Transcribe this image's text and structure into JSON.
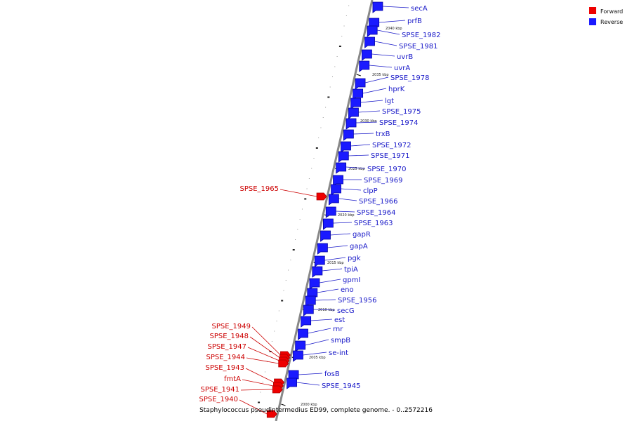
{
  "colors": {
    "forward": "#ee0000",
    "reverse": "#1a1aff",
    "forward_dark": "#a80000",
    "reverse_dark": "#0000a0",
    "forward_label": "#cc0000",
    "reverse_label": "#1818c8",
    "axis": "#888888"
  },
  "legend": {
    "forward": "Forward",
    "reverse": "Reverse"
  },
  "caption": "Staphylococcus pseudintermedius ED99, complete genome. - 0..2572216",
  "ticks": [
    "2040 kbp",
    "2035 kbp",
    "2030 kbp",
    "2025 kbp",
    "2020 kbp",
    "2015 kbp",
    "2010 kbp",
    "2005 kbp",
    "2000 kbp"
  ],
  "reverse_genes": [
    "secA",
    "prfB",
    "SPSE_1982",
    "SPSE_1981",
    "uvrB",
    "uvrA",
    "SPSE_1978",
    "hprK",
    "lgt",
    "SPSE_1975",
    "SPSE_1974",
    "trxB",
    "SPSE_1972",
    "SPSE_1971",
    "SPSE_1970",
    "SPSE_1969",
    "clpP",
    "SPSE_1966",
    "SPSE_1964",
    "SPSE_1963",
    "gapR",
    "gapA",
    "pgk",
    "tpiA",
    "gpmI",
    "eno",
    "SPSE_1956",
    "secG",
    "est",
    "rnr",
    "smpB",
    "se-int",
    "fosB",
    "SPSE_1945"
  ],
  "forward_genes": [
    "SPSE_1965",
    "SPSE_1949",
    "SPSE_1948",
    "SPSE_1947",
    "SPSE_1944",
    "SPSE_1943",
    "fmtA",
    "SPSE_1941",
    "SPSE_1940"
  ]
}
